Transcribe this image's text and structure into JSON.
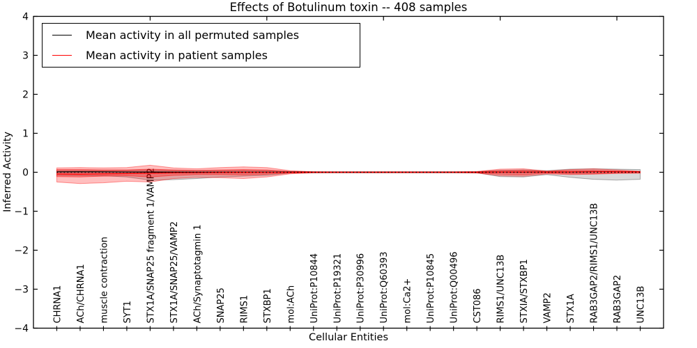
{
  "figure": {
    "title": "Effects of Botulinum toxin -- 408 samples",
    "xlabel": "Cellular Entities",
    "ylabel": "Inferred Activity"
  },
  "legend": {
    "items": [
      {
        "label": "Mean activity in all permuted samples",
        "color": "#000000"
      },
      {
        "label": "Mean activity in patient samples",
        "color": "#ff0000"
      }
    ]
  },
  "chart_data": {
    "type": "area",
    "title": "Effects of Botulinum toxin -- 408 samples",
    "xlabel": "Cellular Entities",
    "ylabel": "Inferred Activity",
    "categories": [
      "CHRNA1",
      "ACh/CHRNA1",
      "muscle contraction",
      "SYT1",
      "STX1A/SNAP25 fragment 1/VAMP2",
      "STX1A/SNAP25/VAMP2",
      "ACh/Synaptotagmin 1",
      "SNAP25",
      "RIMS1",
      "STXBP1",
      "mol:ACh",
      "UniProt:P10844",
      "UniProt:P19321",
      "UniProt:P30996",
      "UniProt:Q60393",
      "mol:Ca2+",
      "UniProt:P10845",
      "UniProt:Q00496",
      "CST086",
      "RIMS1/UNC13B",
      "STXIA/STXBP1",
      "VAMP2",
      "STX1A",
      "RAB3GAP2/RIMS1/UNC13B",
      "RAB3GAP2",
      "UNC13B"
    ],
    "x": [
      1,
      2,
      3,
      4,
      5,
      6,
      7,
      8,
      9,
      10,
      11,
      12,
      13,
      14,
      15,
      16,
      17,
      18,
      19,
      20,
      21,
      22,
      23,
      24,
      25,
      26
    ],
    "xlim": [
      0,
      27
    ],
    "ylim": [
      -4,
      4
    ],
    "yticks": [
      -4,
      -3,
      -2,
      -1,
      0,
      1,
      2,
      3,
      4
    ],
    "top_xticks": [
      5,
      10,
      15,
      20,
      25
    ],
    "grid": false,
    "legend_position": "upper left",
    "bands": [
      {
        "name": "permuted-range",
        "color": "#000000",
        "opacity": 0.15,
        "hi": [
          0.05,
          0.05,
          0.05,
          0.05,
          0.06,
          0.05,
          0.04,
          0.04,
          0.05,
          0.04,
          0.02,
          0.012,
          0.01,
          0.01,
          0.01,
          0.01,
          0.01,
          0.01,
          0.015,
          0.05,
          0.06,
          0.04,
          0.08,
          0.09,
          0.08,
          0.07
        ],
        "lo": [
          -0.08,
          -0.09,
          -0.09,
          -0.12,
          -0.2,
          -0.19,
          -0.16,
          -0.12,
          -0.1,
          -0.08,
          -0.02,
          -0.012,
          -0.01,
          -0.01,
          -0.01,
          -0.01,
          -0.01,
          -0.01,
          -0.015,
          -0.11,
          -0.12,
          -0.06,
          -0.13,
          -0.18,
          -0.2,
          -0.18
        ]
      },
      {
        "name": "patient-range",
        "color": "#ff0000",
        "opacity": 0.25,
        "hi": [
          0.11,
          0.12,
          0.11,
          0.12,
          0.18,
          0.11,
          0.09,
          0.12,
          0.14,
          0.12,
          0.04,
          0.015,
          0.012,
          0.012,
          0.012,
          0.012,
          0.012,
          0.012,
          0.02,
          0.08,
          0.09,
          0.03,
          0.07,
          0.09,
          0.06,
          0.025
        ],
        "lo": [
          -0.25,
          -0.29,
          -0.27,
          -0.23,
          -0.25,
          -0.16,
          -0.13,
          -0.14,
          -0.16,
          -0.12,
          -0.04,
          -0.015,
          -0.012,
          -0.012,
          -0.012,
          -0.012,
          -0.012,
          -0.012,
          -0.02,
          -0.09,
          -0.1,
          -0.04,
          -0.06,
          -0.05,
          -0.03,
          -0.025
        ]
      },
      {
        "name": "patient-core",
        "color": "#ff0000",
        "opacity": 0.3,
        "hi": [
          0.07,
          0.07,
          0.06,
          0.06,
          0.08,
          0.06,
          0.05,
          0.06,
          0.07,
          0.06,
          0.02,
          0.01,
          0.008,
          0.008,
          0.008,
          0.008,
          0.008,
          0.008,
          0.012,
          0.04,
          0.05,
          0.02,
          0.04,
          0.05,
          0.03,
          0.015
        ],
        "lo": [
          -0.11,
          -0.12,
          -0.1,
          -0.09,
          -0.12,
          -0.08,
          -0.06,
          -0.06,
          -0.07,
          -0.05,
          -0.02,
          -0.01,
          -0.008,
          -0.008,
          -0.008,
          -0.008,
          -0.008,
          -0.008,
          -0.012,
          -0.05,
          -0.06,
          -0.02,
          -0.04,
          -0.04,
          -0.02,
          -0.015
        ]
      }
    ],
    "lines": [
      {
        "name": "mean-permuted",
        "color": "#000000",
        "style": "solid",
        "values": [
          0.01,
          0.012,
          0.01,
          0.008,
          0.005,
          0.003,
          0.002,
          0.002,
          0.002,
          0.002,
          0.001,
          0,
          0,
          0,
          0,
          0,
          0,
          0,
          0,
          0.002,
          0.003,
          0.002,
          0.005,
          0.01,
          0.012,
          0.012
        ]
      },
      {
        "name": "mean-patient",
        "color": "#ff0000",
        "style": "solid",
        "values": [
          -0.045,
          -0.05,
          -0.042,
          -0.035,
          -0.025,
          -0.015,
          -0.01,
          -0.006,
          -0.003,
          -0.002,
          -0.001,
          0,
          0,
          0,
          0,
          0,
          0,
          0,
          0,
          0.004,
          0.005,
          0.002,
          0.005,
          0.01,
          0.012,
          0.012
        ]
      },
      {
        "name": "zero-reference",
        "color": "#000000",
        "style": "dotted",
        "values": [
          0,
          0,
          0,
          0,
          0,
          0,
          0,
          0,
          0,
          0,
          0,
          0,
          0,
          0,
          0,
          0,
          0,
          0,
          0,
          0,
          0,
          0,
          0,
          0,
          0,
          0
        ]
      }
    ]
  }
}
